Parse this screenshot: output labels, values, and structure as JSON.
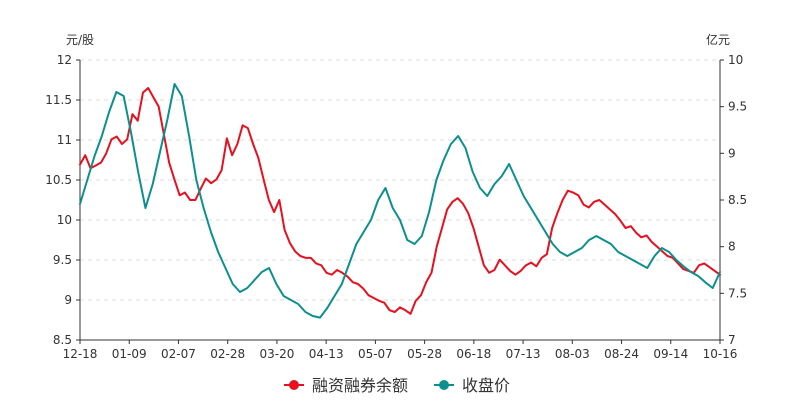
{
  "chart_data": {
    "type": "line",
    "left_axis_unit": "元/股",
    "right_axis_unit": "亿元",
    "left_axis": {
      "min": 8.5,
      "max": 12,
      "ticks": [
        "8.5",
        "9",
        "9.5",
        "10",
        "10.5",
        "11",
        "11.5",
        "12"
      ]
    },
    "right_axis": {
      "min": 7,
      "max": 10,
      "ticks": [
        "7",
        "7.5",
        "8",
        "8.5",
        "9",
        "9.5",
        "10"
      ]
    },
    "x_tick_labels": [
      "12-18",
      "01-09",
      "02-07",
      "02-28",
      "03-20",
      "04-13",
      "05-07",
      "05-28",
      "06-18",
      "07-13",
      "08-03",
      "08-24",
      "09-14",
      "10-16"
    ],
    "grid": "horizontal-dashed",
    "legend_position": "bottom-center",
    "series": [
      {
        "name": "融资融券余额",
        "axis": "right",
        "color": "#e8101e",
        "values": [
          8.88,
          8.98,
          8.84,
          8.87,
          8.9,
          9.0,
          9.15,
          9.18,
          9.1,
          9.15,
          9.42,
          9.35,
          9.65,
          9.7,
          9.6,
          9.5,
          9.2,
          8.9,
          8.72,
          8.55,
          8.58,
          8.5,
          8.5,
          8.62,
          8.73,
          8.68,
          8.72,
          8.82,
          9.16,
          8.98,
          9.1,
          9.3,
          9.27,
          9.1,
          8.95,
          8.72,
          8.5,
          8.37,
          8.5,
          8.18,
          8.04,
          7.95,
          7.9,
          7.88,
          7.88,
          7.82,
          7.8,
          7.72,
          7.7,
          7.75,
          7.72,
          7.68,
          7.62,
          7.6,
          7.55,
          7.48,
          7.45,
          7.42,
          7.4,
          7.32,
          7.3,
          7.35,
          7.32,
          7.28,
          7.42,
          7.48,
          7.62,
          7.72,
          8.0,
          8.2,
          8.4,
          8.48,
          8.52,
          8.46,
          8.36,
          8.2,
          8.0,
          7.8,
          7.72,
          7.75,
          7.86,
          7.8,
          7.74,
          7.7,
          7.74,
          7.8,
          7.83,
          7.79,
          7.88,
          7.92,
          8.2,
          8.36,
          8.5,
          8.6,
          8.58,
          8.55,
          8.45,
          8.42,
          8.48,
          8.5,
          8.45,
          8.4,
          8.35,
          8.28,
          8.2,
          8.22,
          8.15,
          8.1,
          8.12,
          8.05,
          8.0,
          7.95,
          7.9,
          7.88,
          7.82,
          7.76,
          7.74,
          7.72,
          7.8,
          7.82,
          7.78,
          7.74,
          7.7
        ],
        "note": ""
      },
      {
        "name": "收盘价",
        "axis": "left",
        "color": "#0c8f8f",
        "values": [
          10.2,
          10.5,
          10.8,
          11.05,
          11.35,
          11.6,
          11.55,
          11.1,
          10.6,
          10.15,
          10.45,
          10.85,
          11.25,
          11.7,
          11.55,
          11.05,
          10.5,
          10.15,
          9.85,
          9.6,
          9.4,
          9.2,
          9.1,
          9.15,
          9.25,
          9.35,
          9.4,
          9.2,
          9.05,
          9.0,
          8.95,
          8.85,
          8.8,
          8.78,
          8.9,
          9.05,
          9.2,
          9.45,
          9.7,
          9.85,
          10.0,
          10.25,
          10.4,
          10.15,
          10.0,
          9.75,
          9.7,
          9.8,
          10.1,
          10.5,
          10.75,
          10.95,
          11.05,
          10.9,
          10.6,
          10.4,
          10.3,
          10.45,
          10.55,
          10.7,
          10.5,
          10.3,
          10.15,
          10.0,
          9.85,
          9.7,
          9.6,
          9.55,
          9.6,
          9.65,
          9.75,
          9.8,
          9.75,
          9.7,
          9.6,
          9.55,
          9.5,
          9.45,
          9.4,
          9.55,
          9.65,
          9.6,
          9.5,
          9.42,
          9.35,
          9.3,
          9.22,
          9.15,
          9.35
        ],
        "note": ""
      }
    ]
  }
}
